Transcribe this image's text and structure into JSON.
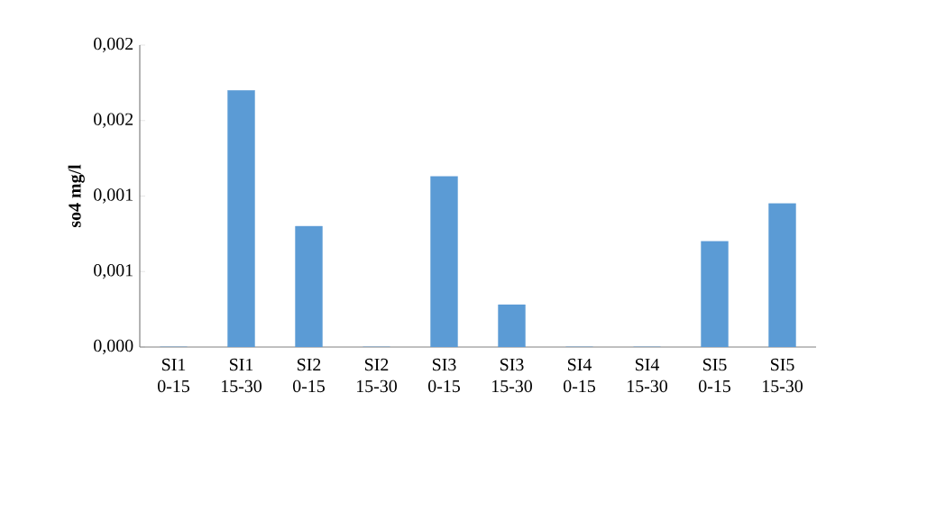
{
  "chart_data": {
    "type": "bar",
    "ylabel": "so4 mg/l",
    "categories": [
      "SI1 0-15",
      "SI1 15-30",
      "SI2 0-15",
      "SI2 15-30",
      "SI3 0-15",
      "SI3 15-30",
      "SI4 0-15",
      "SI4 15-30",
      "SI5 0-15",
      "SI5 15-30"
    ],
    "values": [
      0,
      0.0017,
      0.0008,
      0,
      0.00113,
      0.00028,
      0,
      0,
      0.0007,
      0.00095
    ],
    "color": "#5b9bd5",
    "ylim": [
      0,
      0.002
    ],
    "yticks": [
      {
        "value": 0,
        "label": "0,000"
      },
      {
        "value": 0.0005,
        "label": "0,001"
      },
      {
        "value": 0.001,
        "label": "0,001"
      },
      {
        "value": 0.0015,
        "label": "0,002"
      },
      {
        "value": 0.002,
        "label": "0,002"
      }
    ],
    "grid": false
  }
}
